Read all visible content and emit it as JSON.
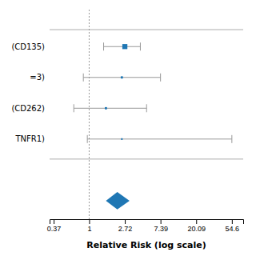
{
  "chart_data": {
    "type": "forest",
    "xlabel": "Relative Risk (log scale)",
    "categories": [
      "(CD135)",
      "=3)",
      "(CD262)",
      "TNFR1)"
    ],
    "values": [
      2.72,
      2.5,
      1.6,
      2.5
    ],
    "ci_low": [
      1.5,
      0.85,
      0.65,
      0.95
    ],
    "ci_high": [
      4.2,
      7.39,
      5.0,
      54.6
    ],
    "sizes": [
      4.5,
      2.0,
      2.0,
      1.5
    ],
    "pooled": {
      "value": 2.2,
      "ci_low": 1.6,
      "ci_high": 3.1
    },
    "reference_line": 1,
    "log": "x",
    "grid": false,
    "xlim": [
      0.33,
      75
    ],
    "xticks": [
      0.37,
      1,
      2.72,
      7.39,
      20.09,
      54.6
    ]
  }
}
